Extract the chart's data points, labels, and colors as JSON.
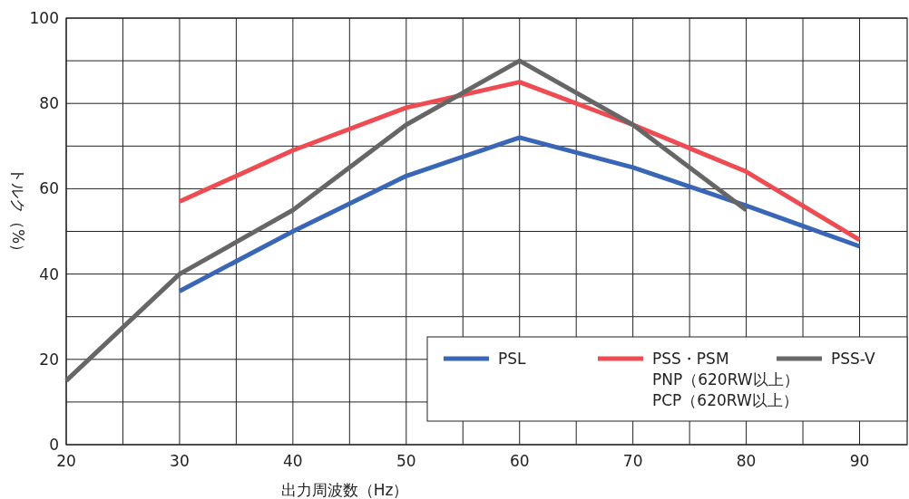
{
  "chart_data": {
    "type": "line",
    "xlabel": "出力周波数（Hz）",
    "ylabel": "トルク（%）",
    "xlim": [
      20,
      94.2
    ],
    "ylim": [
      0,
      100
    ],
    "xticks": [
      20,
      {
        "value": 25,
        "label": null
      },
      30,
      {
        "value": 35,
        "label": null
      },
      40,
      {
        "value": 45,
        "label": null
      },
      50,
      {
        "value": 55,
        "label": null
      },
      60,
      {
        "value": 65,
        "label": null
      },
      70,
      {
        "value": 75,
        "label": null
      },
      80,
      {
        "value": 85,
        "label": null
      },
      90
    ],
    "yticks": [
      0,
      {
        "value": 10,
        "label": null
      },
      20,
      {
        "value": 30,
        "label": null
      },
      40,
      {
        "value": 50,
        "label": null
      },
      60,
      {
        "value": 70,
        "label": null
      },
      80,
      {
        "value": 90,
        "label": null
      },
      100
    ],
    "grid": true,
    "legend": "bottom right",
    "marker": "none",
    "line_style": "solid",
    "series": [
      {
        "name": "PSL",
        "color": "#3a66b8",
        "x": [
          30,
          40,
          50,
          60,
          70,
          80,
          90
        ],
        "values": [
          36,
          50,
          63,
          72,
          65,
          56,
          46.5
        ]
      },
      {
        "name": "PSS・PSM\nPNP（620RW以上）\nPCP（620RW以上）",
        "color": "#ee4b52",
        "x": [
          30,
          40,
          50,
          60,
          70,
          80,
          90
        ],
        "values": [
          57,
          69,
          79,
          85,
          75,
          64,
          48
        ]
      },
      {
        "name": "PSS-V",
        "color": "#666666",
        "x": [
          20,
          30,
          40,
          50,
          60,
          70,
          80
        ],
        "values": [
          15,
          40,
          55,
          75,
          90,
          75,
          55
        ]
      }
    ]
  }
}
